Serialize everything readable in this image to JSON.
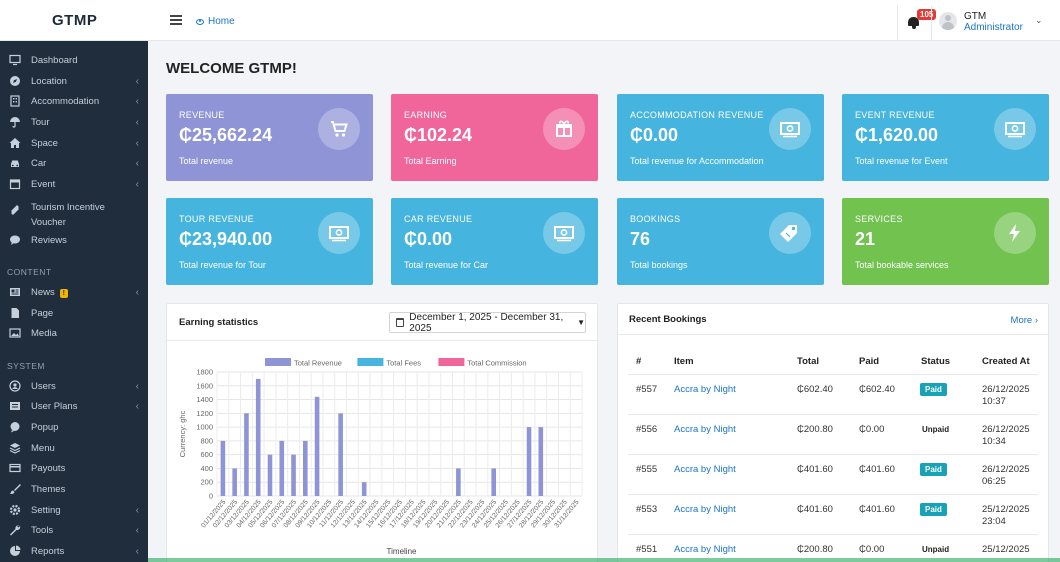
{
  "brand": "GTMP",
  "breadcrumb": {
    "home": "Home"
  },
  "topbar": {
    "notification_count": "105",
    "user_name": "GTM",
    "user_role": "Administrator"
  },
  "sidebar": {
    "items": [
      {
        "label": "Dashboard",
        "icon": "monitor-icon",
        "arrow": false
      },
      {
        "label": "Location",
        "icon": "compass-icon",
        "arrow": true
      },
      {
        "label": "Accommodation",
        "icon": "building-icon",
        "arrow": true
      },
      {
        "label": "Tour",
        "icon": "umbrella-icon",
        "arrow": true
      },
      {
        "label": "Space",
        "icon": "home-icon",
        "arrow": true
      },
      {
        "label": "Car",
        "icon": "car-icon",
        "arrow": true
      },
      {
        "label": "Event",
        "icon": "calendar-icon",
        "arrow": true
      },
      {
        "label": "Tourism Incentive Voucher",
        "icon": "ticket-icon",
        "arrow": false
      },
      {
        "label": "Reviews",
        "icon": "comment-icon",
        "arrow": false
      }
    ],
    "content_section": "CONTENT",
    "content_items": [
      {
        "label": "News",
        "icon": "newspaper-icon",
        "arrow": true,
        "badge": "!"
      },
      {
        "label": "Page",
        "icon": "file-icon",
        "arrow": false
      },
      {
        "label": "Media",
        "icon": "image-icon",
        "arrow": false
      }
    ],
    "system_section": "SYSTEM",
    "system_items": [
      {
        "label": "Users",
        "icon": "users-icon",
        "arrow": true
      },
      {
        "label": "User Plans",
        "icon": "list-icon",
        "arrow": true
      },
      {
        "label": "Popup",
        "icon": "bubble-icon",
        "arrow": false
      },
      {
        "label": "Menu",
        "icon": "layers-icon",
        "arrow": false
      },
      {
        "label": "Payouts",
        "icon": "credit-card-icon",
        "arrow": false
      },
      {
        "label": "Themes",
        "icon": "brush-icon",
        "arrow": false
      },
      {
        "label": "Setting",
        "icon": "gear-icon",
        "arrow": true
      },
      {
        "label": "Tools",
        "icon": "wrench-icon",
        "arrow": true
      },
      {
        "label": "Reports",
        "icon": "pie-icon",
        "arrow": true
      }
    ]
  },
  "page_title": "WELCOME GTMP!",
  "cards": [
    {
      "title": "REVENUE",
      "value": "₵25,662.24",
      "sub": "Total revenue",
      "color": "#8e94d6",
      "icon": "cart-icon"
    },
    {
      "title": "EARNING",
      "value": "₵102.24",
      "sub": "Total Earning",
      "color": "#f0669a",
      "icon": "gift-icon"
    },
    {
      "title": "ACCOMMODATION REVENUE",
      "value": "₵0.00",
      "sub": "Total revenue for Accommodation",
      "color": "#45b4de",
      "icon": "money-icon"
    },
    {
      "title": "EVENT REVENUE",
      "value": "₵1,620.00",
      "sub": "Total revenue for Event",
      "color": "#45b4de",
      "icon": "money-icon"
    },
    {
      "title": "TOUR REVENUE",
      "value": "₵23,940.00",
      "sub": "Total revenue for Tour",
      "color": "#45b4de",
      "icon": "money-icon"
    },
    {
      "title": "CAR REVENUE",
      "value": "₵0.00",
      "sub": "Total revenue for Car",
      "color": "#45b4de",
      "icon": "money-icon"
    },
    {
      "title": "BOOKINGS",
      "value": "76",
      "sub": "Total bookings",
      "color": "#45b4de",
      "icon": "tag-icon"
    },
    {
      "title": "SERVICES",
      "value": "21",
      "sub": "Total bookable services",
      "color": "#71c24f",
      "icon": "bolt-icon"
    }
  ],
  "earning": {
    "title": "Earning statistics",
    "date_range": "December 1, 2025 - December 31, 2025"
  },
  "chart_data": {
    "type": "bar",
    "xlabel": "Timeline",
    "ylabel": "Currency: ghc",
    "ylim": [
      0,
      1800
    ],
    "y_ticks": [
      0,
      200,
      400,
      600,
      800,
      1000,
      1200,
      1400,
      1600,
      1800
    ],
    "grid": true,
    "legend_position": "top",
    "categories": [
      "01/12/2025",
      "02/12/2025",
      "03/12/2025",
      "04/12/2025",
      "05/12/2025",
      "06/12/2025",
      "07/12/2025",
      "08/12/2025",
      "09/12/2025",
      "10/12/2025",
      "11/12/2025",
      "12/12/2025",
      "13/12/2025",
      "14/12/2025",
      "15/12/2025",
      "16/12/2025",
      "17/12/2025",
      "18/12/2025",
      "19/12/2025",
      "20/12/2025",
      "21/12/2025",
      "22/12/2025",
      "23/12/2025",
      "24/12/2025",
      "25/12/2025",
      "26/12/2025",
      "27/12/2025",
      "28/12/2025",
      "29/12/2025",
      "30/12/2025",
      "31/12/2025"
    ],
    "series": [
      {
        "name": "Total Revenue",
        "color": "#8e94d6",
        "values": [
          800,
          400,
          1200,
          1700,
          600,
          800,
          600,
          800,
          1440,
          0,
          1200,
          0,
          200,
          0,
          0,
          0,
          0,
          0,
          0,
          0,
          400,
          0,
          0,
          400,
          0,
          0,
          1000,
          1000,
          0,
          0,
          0
        ]
      },
      {
        "name": "Total Fees",
        "color": "#45b4de",
        "values": [
          0,
          0,
          0,
          0,
          0,
          0,
          0,
          0,
          0,
          0,
          0,
          0,
          0,
          0,
          0,
          0,
          0,
          0,
          0,
          0,
          0,
          0,
          0,
          0,
          0,
          0,
          0,
          0,
          0,
          0,
          0
        ]
      },
      {
        "name": "Total Commission",
        "color": "#f0669a",
        "values": [
          0,
          0,
          0,
          0,
          0,
          0,
          0,
          0,
          0,
          0,
          0,
          0,
          0,
          0,
          0,
          0,
          0,
          0,
          0,
          0,
          0,
          0,
          0,
          0,
          0,
          0,
          0,
          0,
          0,
          0,
          0
        ]
      }
    ]
  },
  "recent": {
    "title": "Recent Bookings",
    "more": "More ›",
    "headers": [
      "#",
      "Item",
      "Total",
      "Paid",
      "Status",
      "Created At"
    ],
    "rows": [
      {
        "id": "#557",
        "item": "Accra by Night",
        "total": "₵602.40",
        "paid": "₵602.40",
        "status": "Paid",
        "date": "26/12/2025",
        "time": "10:37"
      },
      {
        "id": "#556",
        "item": "Accra by Night",
        "total": "₵200.80",
        "paid": "₵0.00",
        "status": "Unpaid",
        "date": "26/12/2025",
        "time": "10:34"
      },
      {
        "id": "#555",
        "item": "Accra by Night",
        "total": "₵401.60",
        "paid": "₵401.60",
        "status": "Paid",
        "date": "26/12/2025",
        "time": "06:25"
      },
      {
        "id": "#553",
        "item": "Accra by Night",
        "total": "₵401.60",
        "paid": "₵401.60",
        "status": "Paid",
        "date": "25/12/2025",
        "time": "23:04"
      },
      {
        "id": "#551",
        "item": "Accra by Night",
        "total": "₵200.80",
        "paid": "₵0.00",
        "status": "Unpaid",
        "date": "25/12/2025",
        "time": ""
      }
    ]
  }
}
